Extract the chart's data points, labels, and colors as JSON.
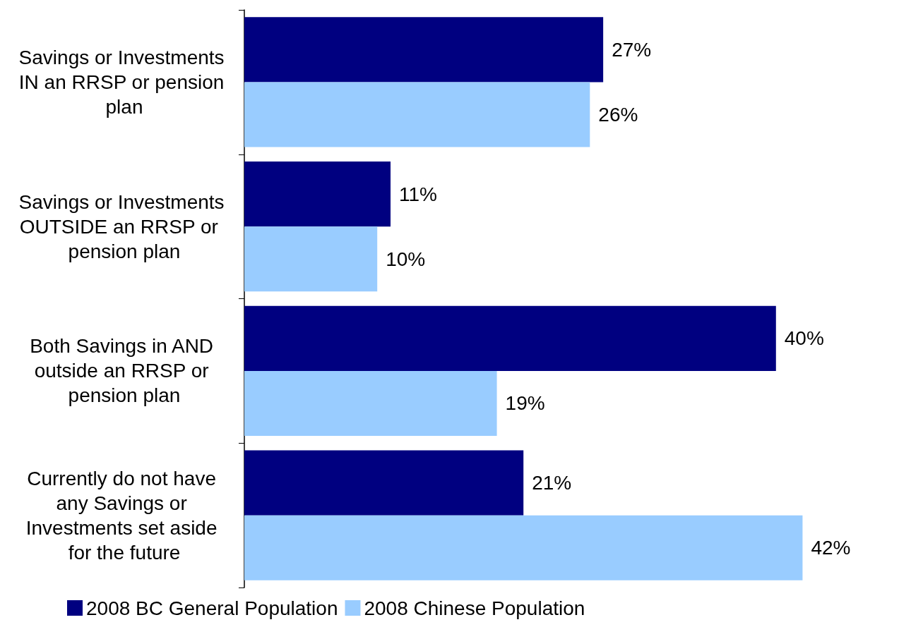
{
  "chart_data": {
    "type": "bar",
    "orientation": "horizontal",
    "categories": [
      "Savings or Investments IN an RRSP or pension plan",
      "Savings or Investments OUTSIDE an RRSP or  pension plan",
      "Both Savings in AND outside an RRSP or pension plan",
      "Currently do not have any Savings or Investments set aside for the future"
    ],
    "series": [
      {
        "name": "2008 BC General Population",
        "color": "#000080",
        "values": [
          27,
          11,
          40,
          21
        ],
        "value_labels": [
          "27%",
          "11%",
          "40%",
          "21%"
        ]
      },
      {
        "name": "2008 Chinese Population",
        "color": "#99ccff",
        "values": [
          26,
          10,
          19,
          42
        ],
        "value_labels": [
          "26%",
          "10%",
          "19%",
          "42%"
        ]
      }
    ],
    "legend": "bottom",
    "grid": false
  }
}
